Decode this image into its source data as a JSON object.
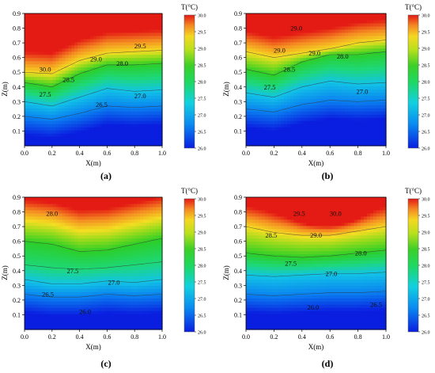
{
  "colorbar": {
    "title": "T(°C)",
    "ticks": [
      "30.0",
      "29.5",
      "29.0",
      "28.5",
      "28.0",
      "27.5",
      "27.0",
      "26.5",
      "26.0"
    ]
  },
  "panel_labels": [
    "(a)",
    "(b)",
    "(c)",
    "(d)"
  ],
  "chart_data": [
    {
      "type": "heatmap",
      "panel": "(a)",
      "xlabel": "X(m)",
      "ylabel": "Z(m)",
      "xlim": [
        0.0,
        1.0
      ],
      "ylim": [
        0.0,
        0.9
      ],
      "xticks": [
        "0.0",
        "0.2",
        "0.4",
        "0.6",
        "0.8",
        "1.0"
      ],
      "yticks": [
        "0.1",
        "0.2",
        "0.3",
        "0.4",
        "0.5",
        "0.6",
        "0.7",
        "0.8",
        "0.9"
      ],
      "colorbar_label": "T(°C)",
      "colorbar_range": [
        26.0,
        30.0
      ],
      "contour_labels": [
        {
          "text": "29.5",
          "x": 0.84,
          "y": 0.68
        },
        {
          "text": "30.0",
          "x": 0.15,
          "y": 0.52
        },
        {
          "text": "29.0",
          "x": 0.52,
          "y": 0.59
        },
        {
          "text": "28.0",
          "x": 0.71,
          "y": 0.56
        },
        {
          "text": "28.5",
          "x": 0.32,
          "y": 0.45
        },
        {
          "text": "27.5",
          "x": 0.15,
          "y": 0.35
        },
        {
          "text": "26.5",
          "x": 0.56,
          "y": 0.28
        },
        {
          "text": "27.0",
          "x": 0.84,
          "y": 0.34
        }
      ],
      "temperature_profile": {
        "isotherm_z_at_x": [
          0.0,
          0.2,
          0.4,
          0.6,
          0.8,
          1.0
        ],
        "isotherms": [
          {
            "level": 29.0,
            "z": [
              0.5,
              0.49,
              0.58,
              0.63,
              0.64,
              0.65
            ]
          },
          {
            "level": 28.0,
            "z": [
              0.43,
              0.4,
              0.49,
              0.55,
              0.55,
              0.56
            ]
          },
          {
            "level": 27.0,
            "z": [
              0.3,
              0.27,
              0.33,
              0.39,
              0.37,
              0.38
            ]
          },
          {
            "level": 26.5,
            "z": [
              0.2,
              0.18,
              0.22,
              0.27,
              0.26,
              0.27
            ]
          }
        ]
      }
    },
    {
      "type": "heatmap",
      "panel": "(b)",
      "xlabel": "X(m)",
      "ylabel": "Z(m)",
      "xlim": [
        0.0,
        1.0
      ],
      "ylim": [
        0.0,
        0.9
      ],
      "xticks": [
        "0.0",
        "0.2",
        "0.4",
        "0.6",
        "0.8",
        "1.0"
      ],
      "yticks": [
        "0.1",
        "0.2",
        "0.3",
        "0.4",
        "0.5",
        "0.6",
        "0.7",
        "0.8",
        "0.9"
      ],
      "colorbar_label": "T(°C)",
      "colorbar_range": [
        26.0,
        30.0
      ],
      "contour_labels": [
        {
          "text": "29.0",
          "x": 0.36,
          "y": 0.8
        },
        {
          "text": "29.0",
          "x": 0.24,
          "y": 0.65
        },
        {
          "text": "29.0",
          "x": 0.49,
          "y": 0.63
        },
        {
          "text": "28.0",
          "x": 0.69,
          "y": 0.61
        },
        {
          "text": "28.5",
          "x": 0.31,
          "y": 0.52
        },
        {
          "text": "27.5",
          "x": 0.17,
          "y": 0.4
        },
        {
          "text": "27.0",
          "x": 0.83,
          "y": 0.37
        }
      ],
      "temperature_profile": {
        "isotherm_z_at_x": [
          0.0,
          0.2,
          0.4,
          0.6,
          0.8,
          1.0
        ],
        "isotherms": [
          {
            "level": 29.0,
            "z": [
              0.64,
              0.6,
              0.63,
              0.66,
              0.7,
              0.72
            ]
          },
          {
            "level": 28.0,
            "z": [
              0.52,
              0.48,
              0.57,
              0.62,
              0.62,
              0.64
            ]
          },
          {
            "level": 27.0,
            "z": [
              0.36,
              0.33,
              0.4,
              0.44,
              0.42,
              0.43
            ]
          },
          {
            "level": 26.5,
            "z": [
              0.25,
              0.23,
              0.28,
              0.31,
              0.3,
              0.31
            ]
          }
        ]
      }
    },
    {
      "type": "heatmap",
      "panel": "(c)",
      "xlabel": "X(m)",
      "ylabel": "Z(m)",
      "xlim": [
        0.0,
        1.0
      ],
      "ylim": [
        0.0,
        0.9
      ],
      "xticks": [
        "0.0",
        "0.2",
        "0.4",
        "0.6",
        "0.8",
        "1.0"
      ],
      "yticks": [
        "0.1",
        "0.2",
        "0.3",
        "0.4",
        "0.5",
        "0.6",
        "0.7",
        "0.8",
        "0.9"
      ],
      "colorbar_label": "T(°C)",
      "colorbar_range": [
        26.0,
        30.0
      ],
      "contour_labels": [
        {
          "text": "28.0",
          "x": 0.2,
          "y": 0.79
        },
        {
          "text": "27.5",
          "x": 0.35,
          "y": 0.4
        },
        {
          "text": "27.0",
          "x": 0.65,
          "y": 0.32
        },
        {
          "text": "26.5",
          "x": 0.17,
          "y": 0.24
        },
        {
          "text": "26.0",
          "x": 0.44,
          "y": 0.12
        }
      ],
      "temperature_profile": {
        "isotherm_z_at_x": [
          0.0,
          0.2,
          0.4,
          0.6,
          0.8,
          1.0
        ],
        "isotherms": [
          {
            "level": 28.0,
            "z": [
              0.6,
              0.58,
              0.53,
              0.54,
              0.58,
              0.62
            ]
          },
          {
            "level": 27.5,
            "z": [
              0.44,
              0.42,
              0.41,
              0.42,
              0.44,
              0.46
            ]
          },
          {
            "level": 27.0,
            "z": [
              0.34,
              0.31,
              0.31,
              0.33,
              0.32,
              0.34
            ]
          },
          {
            "level": 26.5,
            "z": [
              0.24,
              0.22,
              0.22,
              0.24,
              0.23,
              0.24
            ]
          }
        ]
      }
    },
    {
      "type": "heatmap",
      "panel": "(d)",
      "xlabel": "X(m)",
      "ylabel": "Z(m)",
      "xlim": [
        0.0,
        1.0
      ],
      "ylim": [
        0.0,
        0.9
      ],
      "xticks": [
        "0.0",
        "0.2",
        "0.4",
        "0.6",
        "0.8",
        "1.0"
      ],
      "yticks": [
        "0.1",
        "0.2",
        "0.3",
        "0.4",
        "0.5",
        "0.6",
        "0.7",
        "0.8",
        "0.9"
      ],
      "colorbar_label": "T(°C)",
      "colorbar_range": [
        26.0,
        30.0
      ],
      "contour_labels": [
        {
          "text": "29.5",
          "x": 0.38,
          "y": 0.79
        },
        {
          "text": "30.0",
          "x": 0.64,
          "y": 0.79
        },
        {
          "text": "29.0",
          "x": 0.5,
          "y": 0.64
        },
        {
          "text": "28.5",
          "x": 0.18,
          "y": 0.64
        },
        {
          "text": "28.0",
          "x": 0.82,
          "y": 0.52
        },
        {
          "text": "27.5",
          "x": 0.32,
          "y": 0.45
        },
        {
          "text": "27.0",
          "x": 0.61,
          "y": 0.38
        },
        {
          "text": "26.5",
          "x": 0.93,
          "y": 0.17
        },
        {
          "text": "26.0",
          "x": 0.48,
          "y": 0.15
        }
      ],
      "temperature_profile": {
        "isotherm_z_at_x": [
          0.0,
          0.2,
          0.4,
          0.6,
          0.8,
          1.0
        ],
        "isotherms": [
          {
            "level": 29.0,
            "z": [
              0.7,
              0.66,
              0.64,
              0.64,
              0.67,
              0.7
            ]
          },
          {
            "level": 28.0,
            "z": [
              0.52,
              0.5,
              0.49,
              0.5,
              0.52,
              0.54
            ]
          },
          {
            "level": 27.0,
            "z": [
              0.37,
              0.36,
              0.37,
              0.38,
              0.38,
              0.39
            ]
          },
          {
            "level": 26.5,
            "z": [
              0.24,
              0.23,
              0.24,
              0.25,
              0.25,
              0.26
            ]
          }
        ]
      },
      "hot_core": {
        "x": 0.58,
        "z": 0.8
      }
    }
  ]
}
